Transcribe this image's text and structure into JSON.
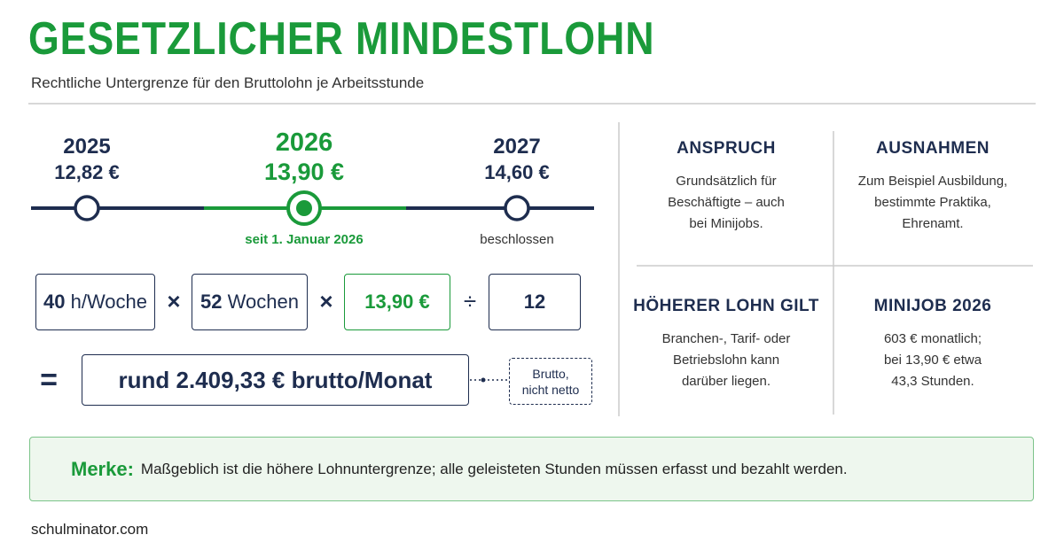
{
  "header": {
    "title": "GESETZLICHER MINDESTLOHN",
    "subtitle": "Rechtliche Untergrenze für den Bruttolohn je Arbeitsstunde"
  },
  "timeline": [
    {
      "year": "2025",
      "wage": "12,82 €"
    },
    {
      "year": "2026",
      "wage": "13,90 €",
      "note": "seit 1. Januar 2026"
    },
    {
      "year": "2027",
      "wage": "14,60 €",
      "note": "beschlossen"
    }
  ],
  "calculation": {
    "factors": [
      {
        "strong": "40",
        "text": "h/Woche"
      },
      {
        "strong": "52",
        "text": "Wochen"
      },
      {
        "strong": "13,90 €"
      },
      {
        "strong": "12"
      }
    ],
    "operators": [
      "×",
      "×",
      "÷"
    ],
    "equals": "=",
    "result": "rund 2.409,33 € brutto/Monat",
    "note": [
      "Brutto,",
      "nicht netto"
    ]
  },
  "cells": [
    {
      "heading": "ANSPRUCH",
      "lines": [
        "Grundsätzlich für",
        "Beschäftigte – auch",
        "bei Minijobs."
      ]
    },
    {
      "heading": "AUSNAHMEN",
      "lines": [
        "Zum Beispiel Ausbildung,",
        "bestimmte Praktika,",
        "Ehrenamt."
      ]
    },
    {
      "heading": "HÖHERER LOHN GILT",
      "lines": [
        "Branchen-, Tarif- oder",
        "Betriebslohn kann",
        "darüber liegen."
      ]
    },
    {
      "heading": "MINIJOB 2026",
      "lines": [
        "603 € monatlich;",
        "bei 13,90 € etwa",
        "43,3 Stunden."
      ]
    }
  ],
  "note": {
    "label": "Merke:",
    "text": "Maßgeblich ist die höhere Lohnuntergrenze; alle geleisteten Stunden müssen erfasst und bezahlt werden."
  },
  "footer": "schulminator.com"
}
